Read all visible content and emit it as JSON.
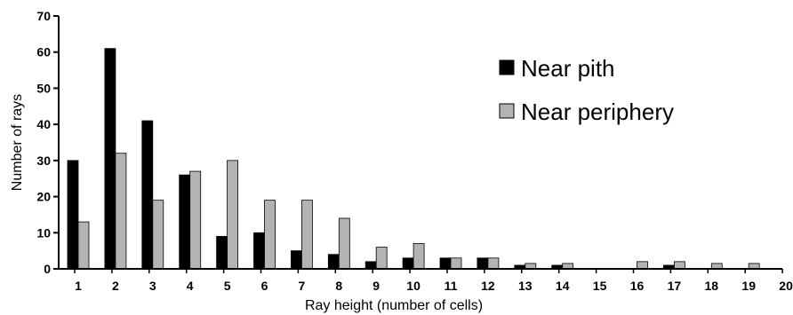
{
  "chart_data": {
    "type": "bar",
    "xlabel": "Ray height (number of cells)",
    "ylabel": "Number of rays",
    "ylim": [
      0,
      70
    ],
    "yticks": [
      0,
      10,
      20,
      30,
      40,
      50,
      60,
      70
    ],
    "categories": [
      "1",
      "2",
      "3",
      "4",
      "5",
      "6",
      "7",
      "8",
      "9",
      "10",
      "11",
      "12",
      "13",
      "14",
      "15",
      "16",
      "17",
      "18",
      "19",
      "20"
    ],
    "series": [
      {
        "name": "Near pith",
        "color": "#000000",
        "values": [
          30,
          61,
          41,
          26,
          9,
          10,
          5,
          4,
          2,
          3,
          3,
          3,
          1,
          1,
          0,
          0,
          1,
          0,
          0,
          0
        ]
      },
      {
        "name": "Near periphery",
        "color": "#b3b3b3",
        "values": [
          13,
          32,
          19,
          27,
          30,
          19,
          19,
          14,
          6,
          7,
          3,
          3,
          1.5,
          1.5,
          0,
          2,
          2,
          1.5,
          1.5,
          0
        ]
      }
    ],
    "legend_position": "top-right",
    "grid": false
  }
}
